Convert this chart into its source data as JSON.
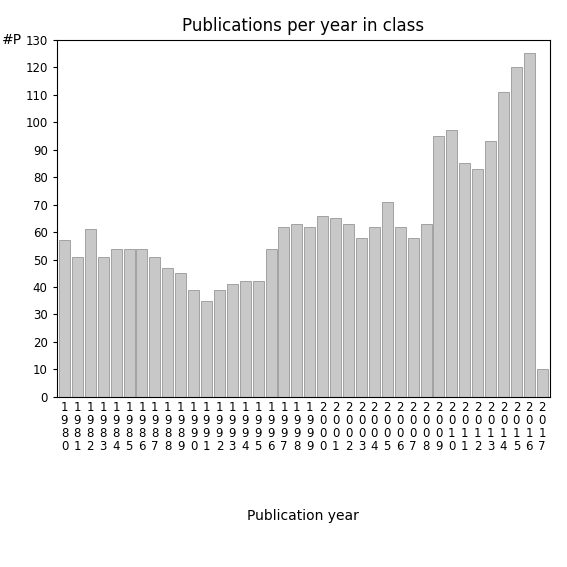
{
  "title": "Publications per year in class",
  "xlabel": "Publication year",
  "ylabel": "#P",
  "years": [
    "1980",
    "1981",
    "1982",
    "1983",
    "1984",
    "1985",
    "1986",
    "1987",
    "1988",
    "1989",
    "1990",
    "1991",
    "1992",
    "1993",
    "1994",
    "1995",
    "1996",
    "1997",
    "1998",
    "1999",
    "2000",
    "2001",
    "2002",
    "2003",
    "2004",
    "2005",
    "2006",
    "2007",
    "2008",
    "2009",
    "2010",
    "2011",
    "2012",
    "2013",
    "2014",
    "2015",
    "2016",
    "2017"
  ],
  "values": [
    57,
    51,
    61,
    51,
    54,
    54,
    54,
    51,
    47,
    45,
    39,
    35,
    39,
    41,
    42,
    42,
    54,
    62,
    63,
    62,
    66,
    65,
    63,
    58,
    62,
    71,
    62,
    58,
    63,
    95,
    97,
    85,
    83,
    93,
    111,
    120,
    125,
    10
  ],
  "bar_color": "#c8c8c8",
  "bar_edge_color": "#888888",
  "ylim": [
    0,
    130
  ],
  "yticks": [
    0,
    10,
    20,
    30,
    40,
    50,
    60,
    70,
    80,
    90,
    100,
    110,
    120,
    130
  ],
  "background_color": "#ffffff",
  "title_fontsize": 12,
  "axis_label_fontsize": 10,
  "tick_fontsize": 8.5
}
